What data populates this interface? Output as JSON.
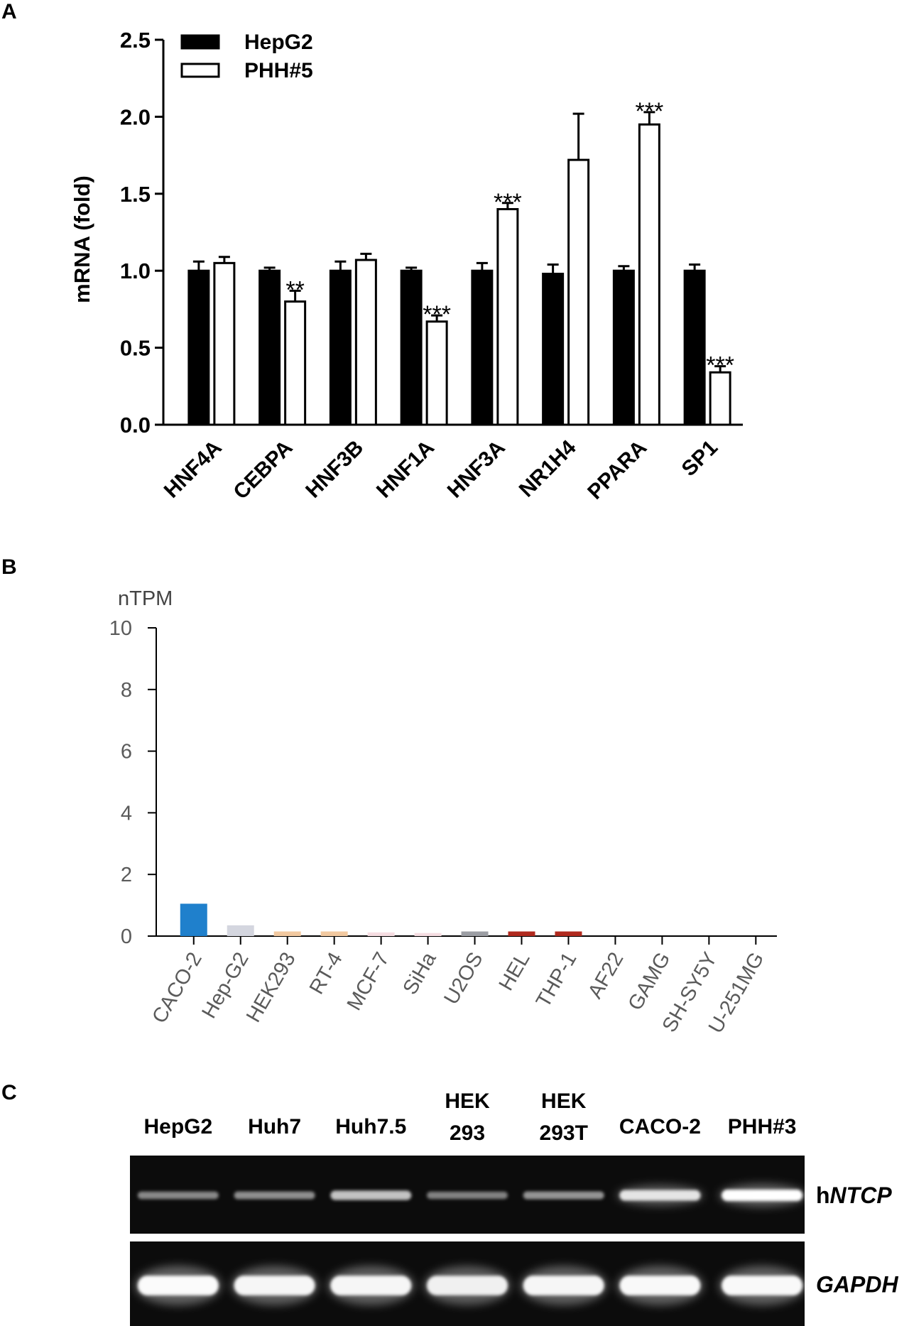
{
  "panels": {
    "a": "A",
    "b": "B",
    "c": "C"
  },
  "chart_data": [
    {
      "type": "bar",
      "panel": "A",
      "title": "",
      "xlabel": "",
      "ylabel": "mRNA (fold)",
      "ylim": [
        0,
        2.5
      ],
      "yticks": [
        "0.0",
        "0.5",
        "1.0",
        "1.5",
        "2.0",
        "2.5"
      ],
      "categories": [
        "HNF4A",
        "CEBPA",
        "HNF3B",
        "HNF1A",
        "HNF3A",
        "NR1H4",
        "PPARA",
        "SP1"
      ],
      "series": [
        {
          "name": "HepG2",
          "color": "#000000",
          "values": [
            1.0,
            1.0,
            1.0,
            1.0,
            1.0,
            0.98,
            1.0,
            1.0
          ],
          "errors": [
            0.06,
            0.02,
            0.06,
            0.02,
            0.05,
            0.06,
            0.03,
            0.04
          ]
        },
        {
          "name": "PHH#5",
          "color": "#ffffff",
          "values": [
            1.05,
            0.8,
            1.07,
            0.67,
            1.4,
            1.72,
            1.95,
            0.34
          ],
          "errors": [
            0.04,
            0.07,
            0.04,
            0.04,
            0.04,
            0.3,
            0.08,
            0.04
          ]
        }
      ],
      "annotations": [
        "",
        "**",
        "",
        "***",
        "***",
        "",
        "***",
        "***"
      ],
      "legend": "top-left"
    },
    {
      "type": "bar",
      "panel": "B",
      "title": "",
      "ylabel": "nTPM",
      "ylim": [
        0,
        10
      ],
      "yticks": [
        "0",
        "2",
        "4",
        "6",
        "8",
        "10"
      ],
      "categories": [
        "CACO-2",
        "Hep-G2",
        "HEK293",
        "RT-4",
        "MCF-7",
        "SiHa",
        "U2OS",
        "HEL",
        "THP-1",
        "AF22",
        "GAMG",
        "SH-SY5Y",
        "U-251MG"
      ],
      "values": [
        1.05,
        0.35,
        0.15,
        0.15,
        0.12,
        0.1,
        0.15,
        0.15,
        0.15,
        0,
        0,
        0,
        0
      ],
      "colors": [
        "#1f80cc",
        "#d4d6df",
        "#f2c9a0",
        "#f2c9a0",
        "#f6dde2",
        "#f6dde2",
        "#9c9ea4",
        "#b02a1e",
        "#b02a1e",
        "#cccccc",
        "#cccccc",
        "#cccccc",
        "#cccccc"
      ]
    }
  ],
  "gel": {
    "lanes": [
      "HepG2",
      "Huh7",
      "Huh7.5",
      "HEK 293",
      "HEK 293T",
      "CACO-2",
      "PHH#3"
    ],
    "lanes_line1": [
      "",
      "",
      "",
      "HEK",
      "HEK",
      "",
      ""
    ],
    "lanes_line2": [
      "HepG2",
      "Huh7",
      "Huh7.5",
      "293",
      "293T",
      "CACO-2",
      "PHH#3"
    ],
    "rows": [
      {
        "label_prefix": "h",
        "label_italic": "NTCP",
        "intensities": [
          0.45,
          0.48,
          0.72,
          0.42,
          0.5,
          0.88,
          1.0
        ]
      },
      {
        "label_prefix": "",
        "label_italic": "GAPDH",
        "intensities": [
          0.98,
          0.96,
          0.96,
          0.93,
          0.96,
          0.97,
          0.97
        ]
      }
    ]
  }
}
